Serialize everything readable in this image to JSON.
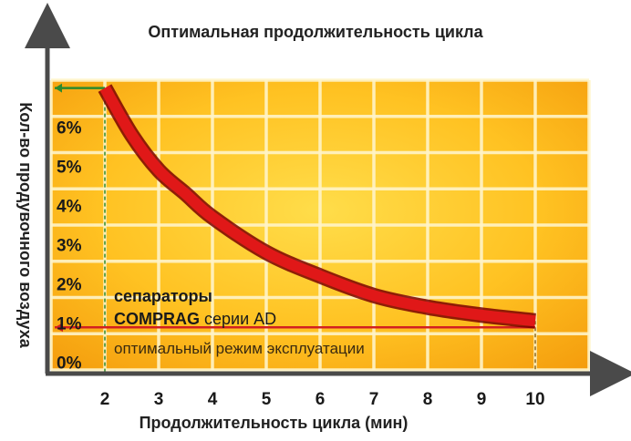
{
  "chart_data": {
    "type": "line",
    "title": "Оптимальная продолжительность цикла",
    "xlabel": "Продолжительность цикла (мин)",
    "ylabel": "Кол-во продувочного воздуха",
    "x_ticks": [
      "2",
      "3",
      "4",
      "5",
      "6",
      "7",
      "8",
      "9",
      "10"
    ],
    "y_ticks": [
      "0%",
      "1%",
      "2%",
      "3%",
      "4%",
      "5%",
      "6%"
    ],
    "xlim": [
      1,
      11
    ],
    "ylim": [
      -0.2,
      7.2
    ],
    "grid": true,
    "series": [
      {
        "x": [
          2,
          2.5,
          3,
          3.5,
          4,
          5,
          6,
          7,
          8,
          9,
          10
        ],
        "y": [
          7.0,
          5.8,
          4.9,
          4.3,
          3.7,
          2.8,
          2.2,
          1.7,
          1.4,
          1.2,
          1.05
        ]
      }
    ],
    "annotations": {
      "label_line1": "сепараторы",
      "label_line2_brand": "COMPRAG",
      "label_line2_rest": " серии AD",
      "optimal_label": "оптимальный режим эксплуатации"
    },
    "colors": {
      "background_center": "#ffd23a",
      "background_edge": "#f59a0a",
      "grid": "#fff4c8",
      "curve": "#e01818",
      "curve_outline": "#7a0000",
      "marker_line": "#d32020",
      "top_marker_line": "#2d8a2d",
      "axis": "#4a4a4a",
      "annotation_text": "#1a1a1a"
    }
  }
}
